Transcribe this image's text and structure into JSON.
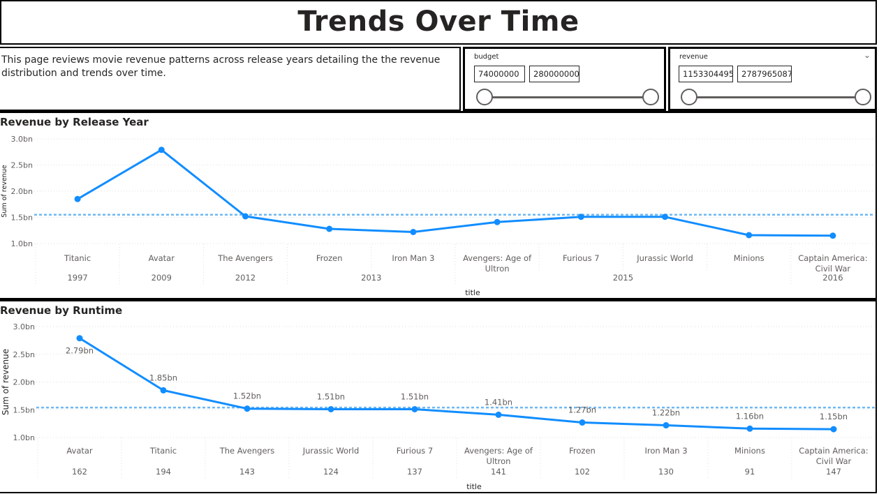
{
  "page_title": "Trends Over Time",
  "description": "This page reviews movie revenue patterns across release years detailing the the revenue distribution and trends over time.",
  "slicers": {
    "budget": {
      "label": "budget",
      "min": "74000000",
      "max": "280000000"
    },
    "revenue": {
      "label": "revenue",
      "min": "1153304495",
      "max": "2787965087"
    }
  },
  "colors": {
    "line": "#118DFF",
    "avg_line": "#6FB8F2",
    "grid": "#E1DFDD",
    "text": "#605E5C"
  },
  "chart_data": [
    {
      "type": "line",
      "title": "Revenue by Release Year",
      "xlabel": "title",
      "ylabel": "Sum of revenue",
      "ylim": [
        1.0,
        3.0
      ],
      "yticks": [
        "1.0bn",
        "1.5bn",
        "2.0bn",
        "2.5bn",
        "3.0bn"
      ],
      "ytick_values": [
        1.0,
        1.5,
        2.0,
        2.5,
        3.0
      ],
      "categories": [
        "Titanic",
        "Avatar",
        "The Avengers",
        "Frozen",
        "Iron Man 3",
        "Avengers: Age of Ultron",
        "Furious 7",
        "Jurassic World",
        "Minions",
        "Captain America: Civil War"
      ],
      "category_lines": [
        [
          "Titanic"
        ],
        [
          "Avatar"
        ],
        [
          "The Avengers"
        ],
        [
          "Frozen"
        ],
        [
          "Iron Man 3"
        ],
        [
          "Avengers: Age of",
          "Ultron"
        ],
        [
          "Furious 7"
        ],
        [
          "Jurassic World"
        ],
        [
          "Minions"
        ],
        [
          "Captain America:",
          "Civil War"
        ]
      ],
      "groups": [
        {
          "label": "1997",
          "start": 0,
          "end": 0
        },
        {
          "label": "2009",
          "start": 1,
          "end": 1
        },
        {
          "label": "2012",
          "start": 2,
          "end": 2
        },
        {
          "label": "2013",
          "start": 3,
          "end": 4
        },
        {
          "label": "2015",
          "start": 5,
          "end": 8
        },
        {
          "label": "2016",
          "start": 9,
          "end": 9
        }
      ],
      "values": [
        1.85,
        2.79,
        1.52,
        1.28,
        1.22,
        1.41,
        1.51,
        1.51,
        1.16,
        1.15
      ],
      "average": 1.55,
      "data_labels": false
    },
    {
      "type": "line",
      "title": "Revenue by Runtime",
      "xlabel": "title",
      "ylabel": "Sum of revenue",
      "ylim": [
        1.0,
        3.0
      ],
      "yticks": [
        "1.0bn",
        "1.5bn",
        "2.0bn",
        "2.5bn",
        "3.0bn"
      ],
      "ytick_values": [
        1.0,
        1.5,
        2.0,
        2.5,
        3.0
      ],
      "categories": [
        "Avatar",
        "Titanic",
        "The Avengers",
        "Jurassic World",
        "Furious 7",
        "Avengers: Age of Ultron",
        "Frozen",
        "Iron Man 3",
        "Minions",
        "Captain America: Civil War"
      ],
      "category_lines": [
        [
          "Avatar"
        ],
        [
          "Titanic"
        ],
        [
          "The Avengers"
        ],
        [
          "Jurassic World"
        ],
        [
          "Furious 7"
        ],
        [
          "Avengers: Age of",
          "Ultron"
        ],
        [
          "Frozen"
        ],
        [
          "Iron Man 3"
        ],
        [
          "Minions"
        ],
        [
          "Captain America:",
          "Civil War"
        ]
      ],
      "groups": [
        {
          "label": "162",
          "start": 0,
          "end": 0
        },
        {
          "label": "194",
          "start": 1,
          "end": 1
        },
        {
          "label": "143",
          "start": 2,
          "end": 2
        },
        {
          "label": "124",
          "start": 3,
          "end": 3
        },
        {
          "label": "137",
          "start": 4,
          "end": 4
        },
        {
          "label": "141",
          "start": 5,
          "end": 5
        },
        {
          "label": "102",
          "start": 6,
          "end": 6
        },
        {
          "label": "130",
          "start": 7,
          "end": 7
        },
        {
          "label": "91",
          "start": 8,
          "end": 8
        },
        {
          "label": "147",
          "start": 9,
          "end": 9
        }
      ],
      "values": [
        2.79,
        1.85,
        1.52,
        1.51,
        1.51,
        1.41,
        1.27,
        1.22,
        1.16,
        1.15
      ],
      "value_labels": [
        "2.79bn",
        "1.85bn",
        "1.52bn",
        "1.51bn",
        "1.51bn",
        "1.41bn",
        "1.27bn",
        "1.22bn",
        "1.16bn",
        "1.15bn"
      ],
      "average": 1.54,
      "data_labels": true
    }
  ]
}
